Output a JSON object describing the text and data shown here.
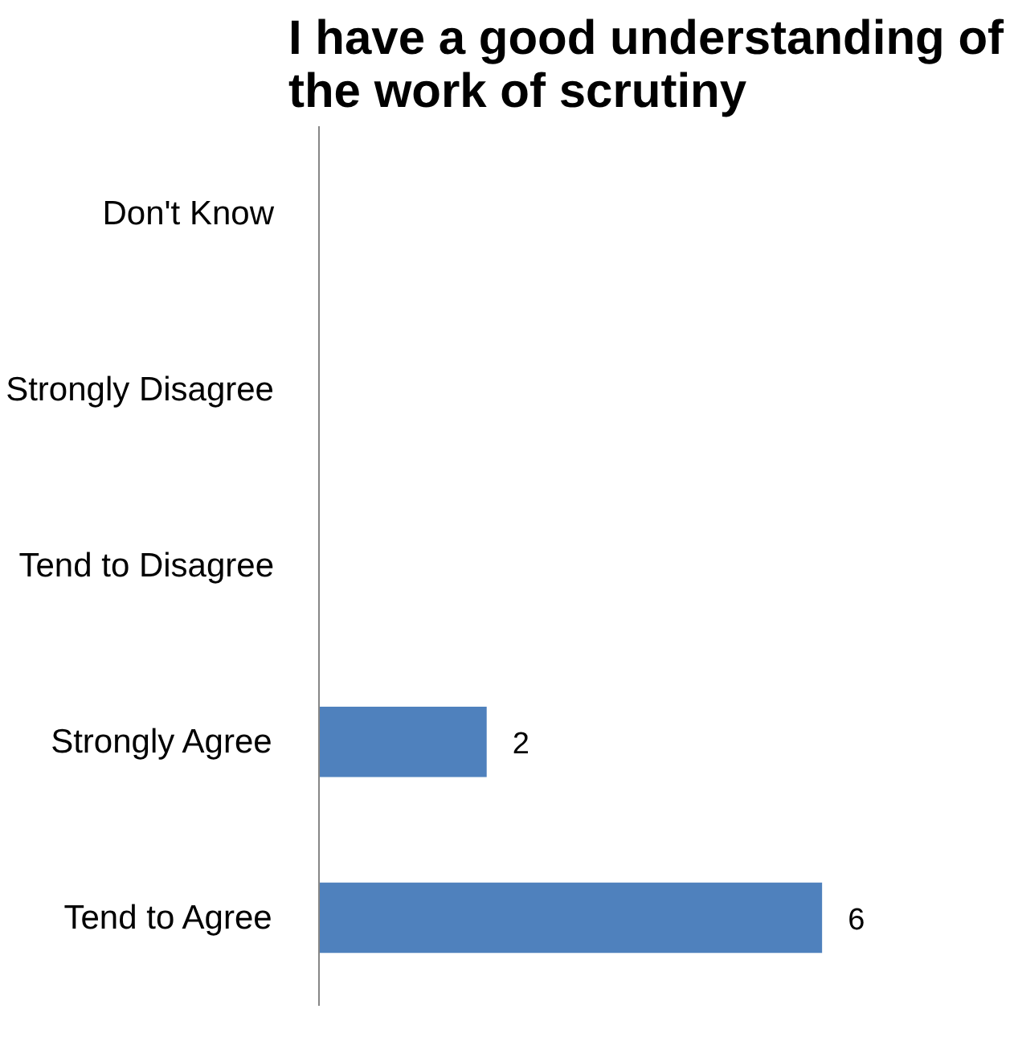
{
  "chart_data": {
    "type": "bar",
    "orientation": "horizontal",
    "title": "I have a good understanding of the work of scrutiny",
    "categories": [
      "Don't Know",
      "Strongly Disagree",
      "Tend to Disagree",
      "Strongly Agree",
      "Tend to Agree"
    ],
    "values": [
      0,
      0,
      0,
      2,
      6
    ],
    "value_labels": [
      null,
      null,
      null,
      "2",
      "6"
    ],
    "color": "#4f81bd",
    "grid": false,
    "tick_labels": "y"
  }
}
